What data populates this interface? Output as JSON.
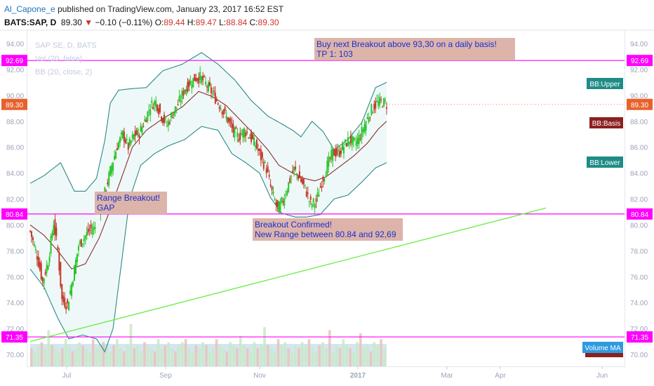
{
  "header": {
    "user": "Al_Capone_e",
    "published": " published on TradingView.com, January 23, 2017 16:52 EST",
    "symbol": "BATS:SAP, D",
    "last": "89.30",
    "change_arrow": "▼",
    "change": "−0.10 (−0.11%)",
    "o_label": "O:",
    "o": "89.44",
    "h_label": "H:",
    "h": "89.47",
    "l_label": "L:",
    "l": "88.84",
    "c_label": "C:",
    "c": "89.30"
  },
  "legend": {
    "title": "SAP SE, D, BATS",
    "volume": "Vol (20, false)",
    "bb": "BB (20, close, 2)"
  },
  "colors": {
    "up": "#27c527",
    "down": "#c0392b",
    "bb_band": "#2a8a86",
    "bb_basis": "#8b2f2f",
    "level": "#ff00ff",
    "trend": "#66ee44",
    "price_tag": "#e8612c",
    "note_bg": "#dcb4aa",
    "volume": "#a9cde6"
  },
  "chart_data": {
    "type": "candlestick",
    "y_ticks": [
      "94.00",
      "92.00",
      "90.00",
      "88.00",
      "86.00",
      "84.00",
      "82.00",
      "80.00",
      "78.00",
      "76.00",
      "74.00",
      "72.00",
      "70.00"
    ],
    "ylim": [
      69.5,
      94.5
    ],
    "x_ticks": [
      "Jul",
      "Sep",
      "Nov",
      "2017",
      "Mar",
      "Apr",
      "Jun"
    ],
    "levels": [
      {
        "value": 92.69,
        "label": "92.69"
      },
      {
        "value": 80.84,
        "label": "80.84"
      },
      {
        "value": 71.35,
        "label": "71.35"
      }
    ],
    "last_price": {
      "value": 89.3,
      "label": "89.30"
    },
    "indicator_labels": {
      "upper": "BB:Upper",
      "basis": "BB:Basis",
      "lower": "BB:Lower",
      "volume": "Volume MA"
    },
    "annotations": [
      {
        "lines": [
          "Buy next Breakout above 93,30 on a daily basis!",
          "TP 1: 103"
        ]
      },
      {
        "lines": [
          "Range Breakout!",
          "GAP"
        ]
      },
      {
        "lines": [
          "Breakout Confirmed!",
          "New Range between 80.84 and 92,69"
        ]
      }
    ],
    "trendline": {
      "from": 71.0,
      "to": 81.3
    },
    "price_path": [
      [
        0,
        79.5
      ],
      [
        5,
        77.6
      ],
      [
        9,
        75.6
      ],
      [
        13,
        77.2
      ],
      [
        17,
        80.2
      ],
      [
        20,
        78.0
      ],
      [
        23,
        74.2
      ],
      [
        27,
        73.8
      ],
      [
        31,
        76.0
      ],
      [
        35,
        78.4
      ],
      [
        39,
        79.0
      ],
      [
        43,
        79.6
      ],
      [
        47,
        79.8
      ],
      [
        51,
        81.3
      ],
      [
        55,
        82.9
      ],
      [
        59,
        84.6
      ],
      [
        63,
        86.1
      ],
      [
        67,
        87.0
      ],
      [
        71,
        86.0
      ],
      [
        75,
        86.9
      ],
      [
        79,
        87.1
      ],
      [
        83,
        88.1
      ],
      [
        87,
        89.2
      ],
      [
        91,
        89.5
      ],
      [
        95,
        88.4
      ],
      [
        99,
        87.7
      ],
      [
        103,
        88.6
      ],
      [
        107,
        89.3
      ],
      [
        111,
        90.3
      ],
      [
        115,
        90.9
      ],
      [
        119,
        91.3
      ],
      [
        123,
        91.4
      ],
      [
        127,
        90.9
      ],
      [
        131,
        90.3
      ],
      [
        135,
        89.6
      ],
      [
        139,
        88.9
      ],
      [
        143,
        88.1
      ],
      [
        147,
        87.2
      ],
      [
        151,
        86.8
      ],
      [
        155,
        87.3
      ],
      [
        159,
        86.8
      ],
      [
        163,
        86.2
      ],
      [
        167,
        85.2
      ],
      [
        171,
        84.3
      ],
      [
        175,
        82.5
      ],
      [
        179,
        81.2
      ],
      [
        183,
        81.9
      ],
      [
        187,
        83.2
      ],
      [
        191,
        84.3
      ],
      [
        195,
        83.6
      ],
      [
        199,
        82.8
      ],
      [
        203,
        81.6
      ],
      [
        207,
        81.8
      ],
      [
        211,
        83.3
      ],
      [
        215,
        84.6
      ],
      [
        219,
        85.6
      ],
      [
        223,
        85.5
      ],
      [
        227,
        86.1
      ],
      [
        231,
        86.6
      ],
      [
        235,
        86.3
      ],
      [
        239,
        86.9
      ],
      [
        243,
        88.0
      ],
      [
        247,
        88.9
      ],
      [
        251,
        89.4
      ],
      [
        255,
        89.5
      ],
      [
        258,
        89.3
      ]
    ],
    "bb_upper": [
      [
        0,
        83.2
      ],
      [
        10,
        83.8
      ],
      [
        22,
        84.8
      ],
      [
        32,
        82.6
      ],
      [
        40,
        82.6
      ],
      [
        48,
        83.6
      ],
      [
        54,
        86.5
      ],
      [
        58,
        89.4
      ],
      [
        64,
        90.4
      ],
      [
        72,
        90.5
      ],
      [
        84,
        90.6
      ],
      [
        96,
        91.9
      ],
      [
        110,
        92.4
      ],
      [
        124,
        93.3
      ],
      [
        136,
        92.4
      ],
      [
        148,
        91.2
      ],
      [
        160,
        89.6
      ],
      [
        172,
        88.4
      ],
      [
        182,
        87.8
      ],
      [
        190,
        87.3
      ],
      [
        196,
        86.8
      ],
      [
        204,
        88.0
      ],
      [
        212,
        87.2
      ],
      [
        220,
        85.8
      ],
      [
        230,
        86.6
      ],
      [
        240,
        87.9
      ],
      [
        250,
        90.6
      ],
      [
        258,
        91.0
      ]
    ],
    "bb_lower": [
      [
        0,
        76.6
      ],
      [
        10,
        75.2
      ],
      [
        20,
        72.8
      ],
      [
        28,
        71.2
      ],
      [
        38,
        71.5
      ],
      [
        48,
        71.2
      ],
      [
        54,
        70.2
      ],
      [
        60,
        72.0
      ],
      [
        66,
        77.0
      ],
      [
        72,
        82.0
      ],
      [
        80,
        84.6
      ],
      [
        90,
        85.5
      ],
      [
        100,
        86.1
      ],
      [
        112,
        86.6
      ],
      [
        124,
        87.6
      ],
      [
        136,
        87.3
      ],
      [
        146,
        85.5
      ],
      [
        156,
        84.8
      ],
      [
        166,
        84.0
      ],
      [
        174,
        82.1
      ],
      [
        182,
        80.9
      ],
      [
        192,
        80.6
      ],
      [
        200,
        80.6
      ],
      [
        210,
        80.8
      ],
      [
        220,
        82.0
      ],
      [
        230,
        82.3
      ],
      [
        240,
        83.3
      ],
      [
        250,
        84.4
      ],
      [
        258,
        84.8
      ]
    ],
    "bb_basis": [
      [
        0,
        80.0
      ],
      [
        10,
        79.2
      ],
      [
        20,
        78.0
      ],
      [
        30,
        76.6
      ],
      [
        40,
        77.0
      ],
      [
        50,
        79.0
      ],
      [
        58,
        81.2
      ],
      [
        66,
        83.6
      ],
      [
        74,
        86.0
      ],
      [
        84,
        87.3
      ],
      [
        96,
        88.2
      ],
      [
        110,
        89.1
      ],
      [
        122,
        90.3
      ],
      [
        132,
        89.9
      ],
      [
        142,
        89.2
      ],
      [
        152,
        88.1
      ],
      [
        162,
        87.0
      ],
      [
        172,
        85.8
      ],
      [
        180,
        84.6
      ],
      [
        190,
        84.0
      ],
      [
        198,
        83.6
      ],
      [
        206,
        83.4
      ],
      [
        214,
        83.7
      ],
      [
        224,
        84.5
      ],
      [
        234,
        85.3
      ],
      [
        244,
        86.3
      ],
      [
        252,
        87.4
      ],
      [
        258,
        88.0
      ]
    ],
    "volume": [
      6,
      5,
      7,
      8,
      6,
      12,
      7,
      6,
      5,
      6,
      9,
      7,
      5,
      6,
      8,
      7,
      6,
      5,
      9,
      6,
      7,
      8,
      6,
      5,
      7,
      9,
      6,
      5,
      7,
      14,
      6,
      7,
      5,
      8,
      7,
      6,
      5,
      9,
      6,
      7,
      8,
      6,
      5,
      7,
      8,
      9,
      6,
      5,
      7,
      6,
      8,
      7,
      5,
      6,
      9,
      7,
      6,
      5,
      8,
      7,
      6,
      10,
      7,
      6,
      5,
      8,
      6,
      7,
      13,
      7,
      6,
      5,
      9,
      7,
      8,
      6,
      5,
      7,
      6,
      8,
      7,
      9,
      6,
      5,
      7,
      8,
      6,
      12,
      5,
      7,
      6,
      9,
      7,
      6,
      5,
      8,
      11,
      6,
      7,
      5,
      8,
      7,
      9,
      6
    ]
  }
}
